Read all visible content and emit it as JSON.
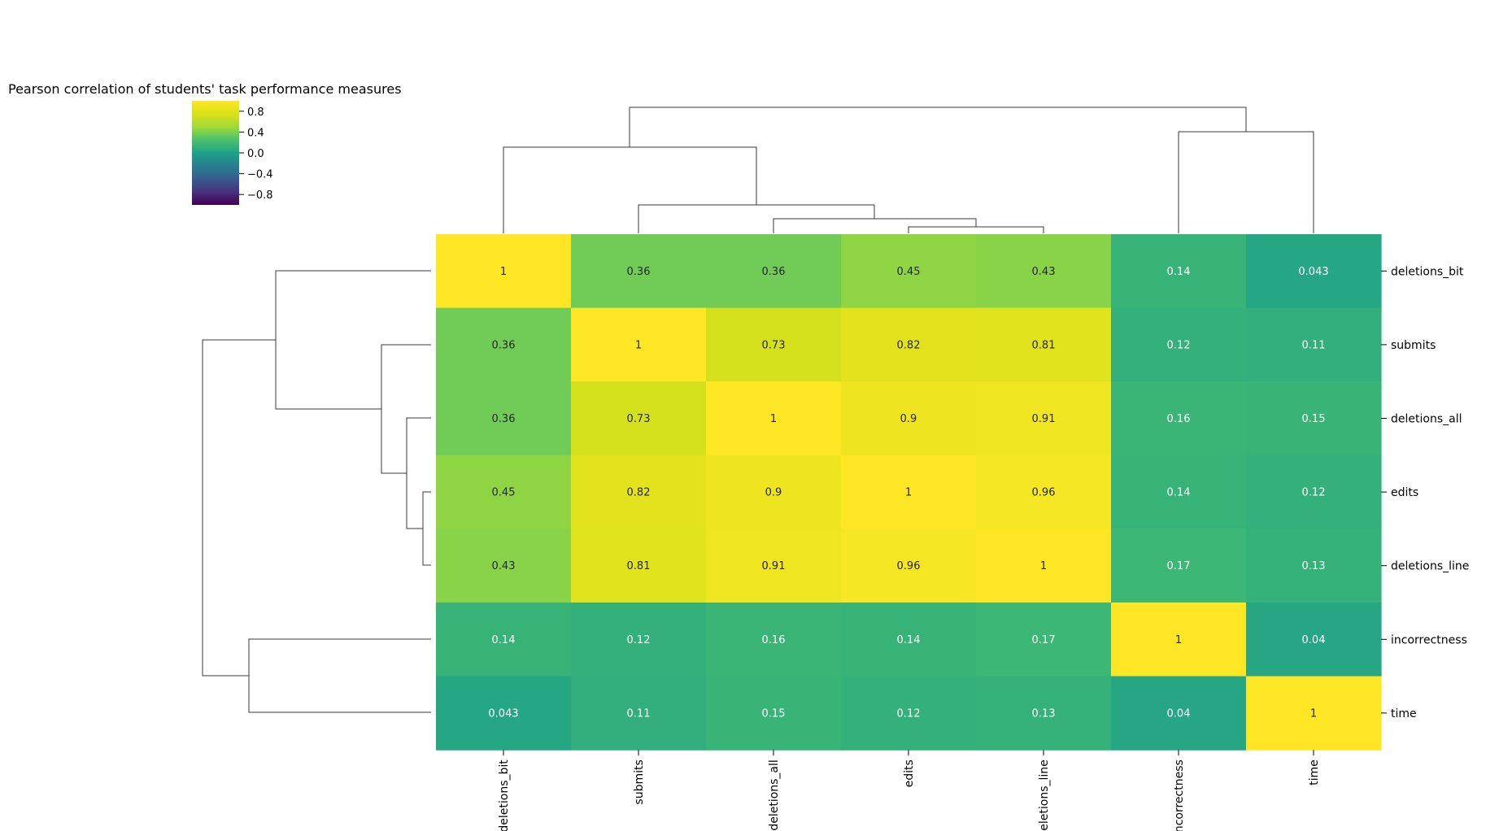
{
  "chart_data": {
    "type": "heatmap",
    "title": "Pearson correlation of students' task performance measures",
    "columns": [
      "deletions_bit",
      "submits",
      "deletions_all",
      "edits",
      "deletions_line",
      "incorrectness",
      "time"
    ],
    "rows": [
      "deletions_bit",
      "submits",
      "deletions_all",
      "edits",
      "deletions_line",
      "incorrectness",
      "time"
    ],
    "values": [
      [
        1,
        0.36,
        0.36,
        0.45,
        0.43,
        0.14,
        0.043
      ],
      [
        0.36,
        1,
        0.73,
        0.82,
        0.81,
        0.12,
        0.11
      ],
      [
        0.36,
        0.73,
        1,
        0.9,
        0.91,
        0.16,
        0.15
      ],
      [
        0.45,
        0.82,
        0.9,
        1,
        0.96,
        0.14,
        0.12
      ],
      [
        0.43,
        0.81,
        0.91,
        0.96,
        1,
        0.17,
        0.13
      ],
      [
        0.14,
        0.12,
        0.16,
        0.14,
        0.17,
        1,
        0.04
      ],
      [
        0.043,
        0.11,
        0.15,
        0.12,
        0.13,
        0.04,
        1
      ]
    ],
    "value_labels": [
      [
        "1",
        "0.36",
        "0.36",
        "0.45",
        "0.43",
        "0.14",
        "0.043"
      ],
      [
        "0.36",
        "1",
        "0.73",
        "0.82",
        "0.81",
        "0.12",
        "0.11"
      ],
      [
        "0.36",
        "0.73",
        "1",
        "0.9",
        "0.91",
        "0.16",
        "0.15"
      ],
      [
        "0.45",
        "0.82",
        "0.9",
        "1",
        "0.96",
        "0.14",
        "0.12"
      ],
      [
        "0.43",
        "0.81",
        "0.91",
        "0.96",
        "1",
        "0.17",
        "0.13"
      ],
      [
        "0.14",
        "0.12",
        "0.16",
        "0.14",
        "0.17",
        "1",
        "0.04"
      ],
      [
        "0.043",
        "0.11",
        "0.15",
        "0.12",
        "0.13",
        "0.04",
        "1"
      ]
    ],
    "colormap": "viridis",
    "vmin": -1,
    "vmax": 1,
    "colorbar_ticks": [
      0.8,
      0.4,
      0.0,
      -0.4,
      -0.8
    ],
    "colorbar_tick_labels": [
      "0.8",
      "0.4",
      "0.0",
      "−0.4",
      "−0.8"
    ],
    "dendrogram": "clustered rows and columns",
    "grid": false
  }
}
